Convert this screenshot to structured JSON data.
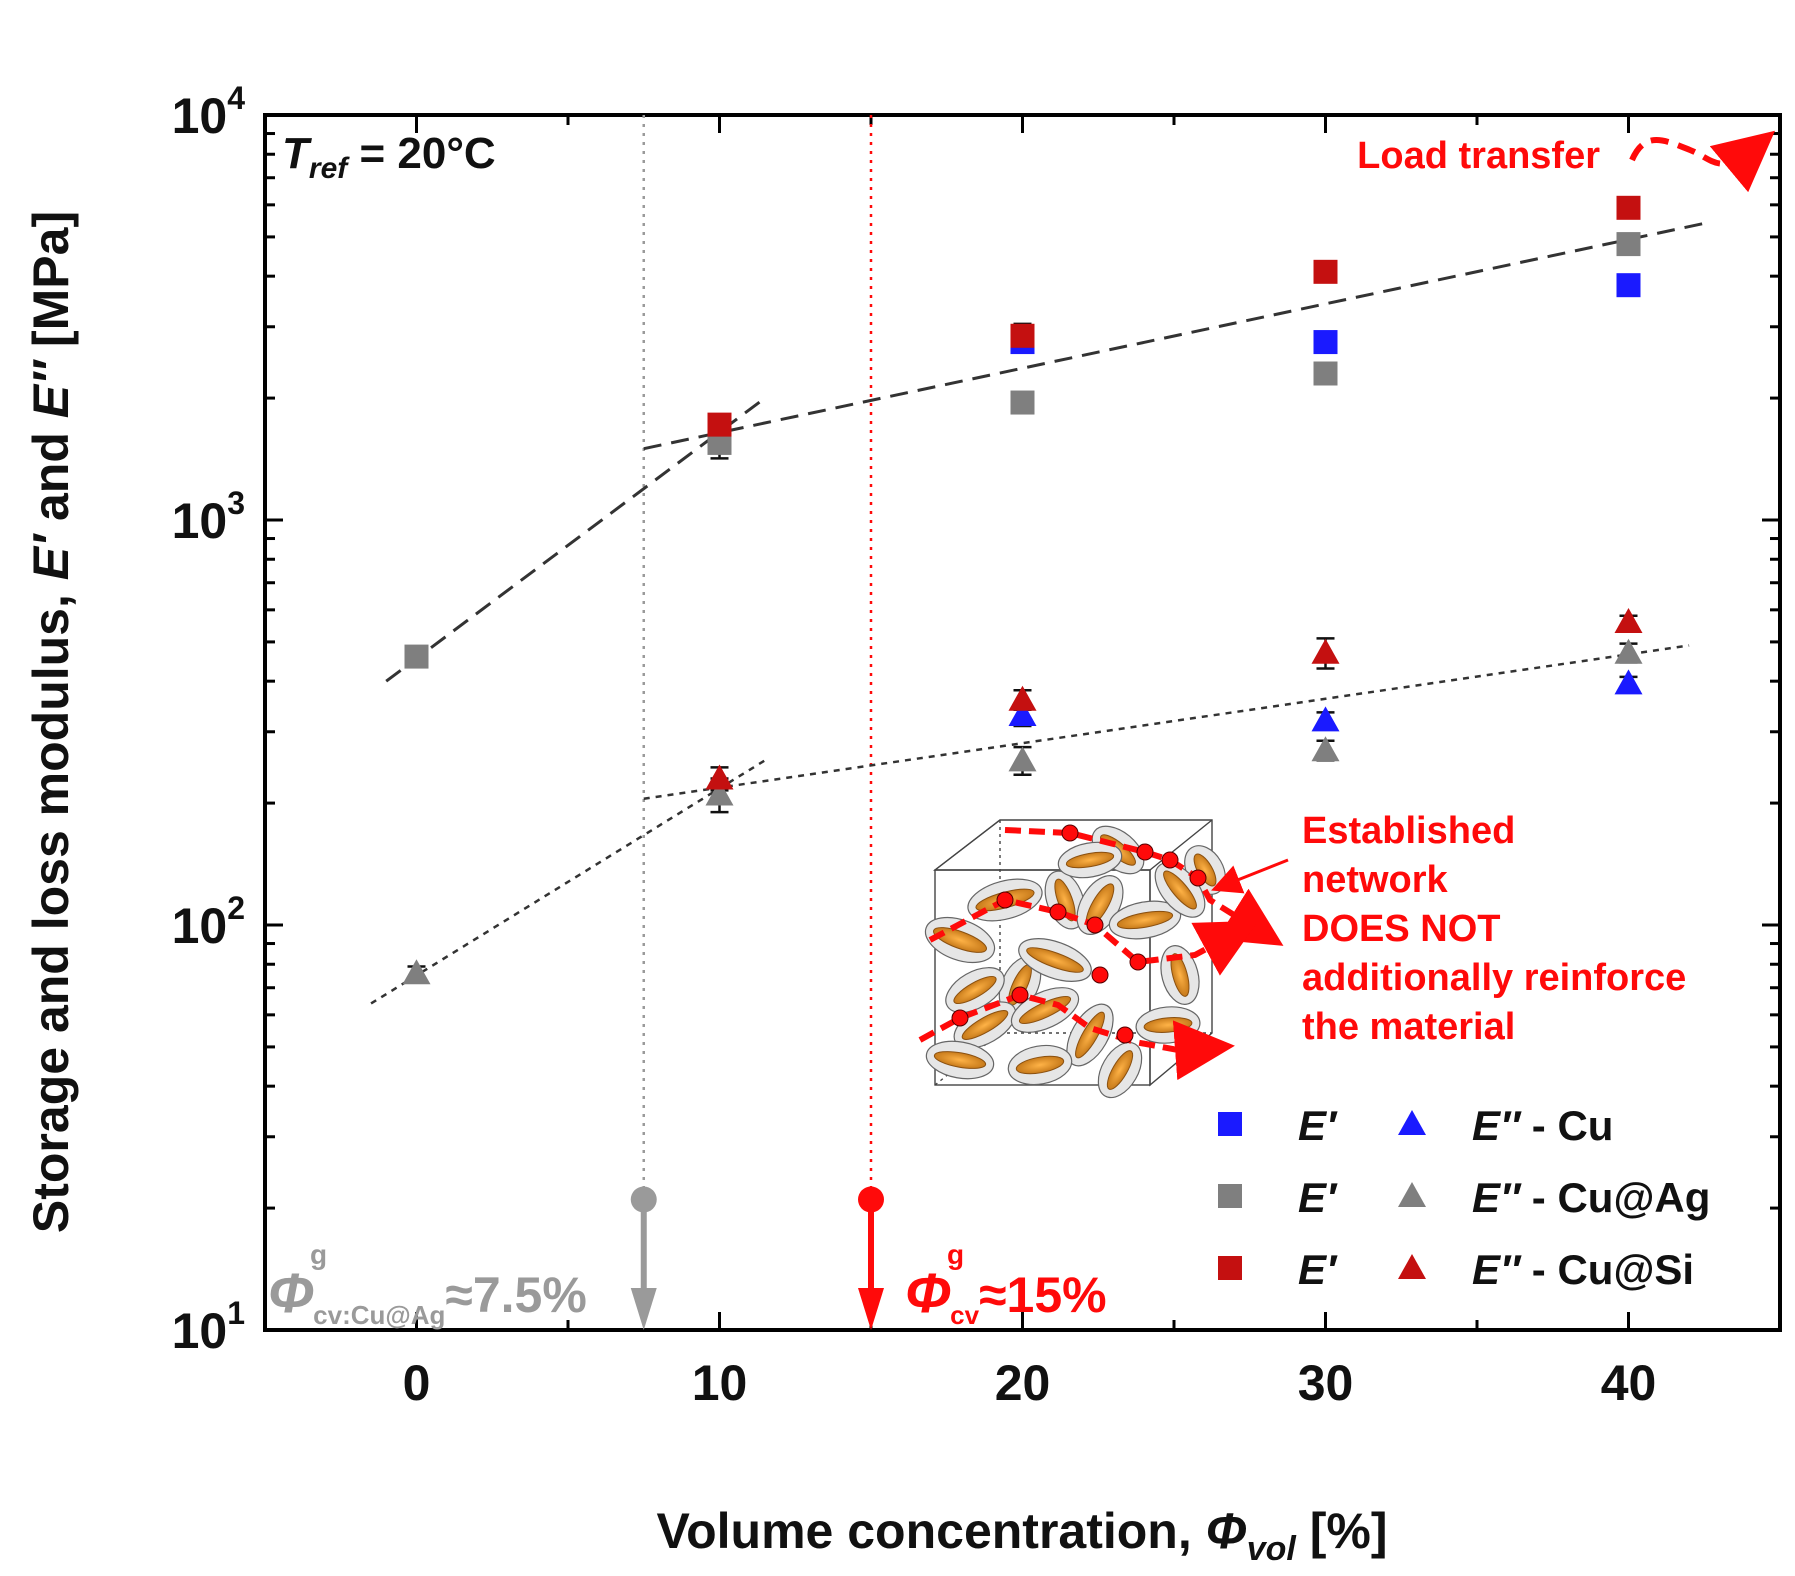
{
  "chart_data": {
    "type": "scatter",
    "title": "",
    "xlabel": "Volume concentration, Φvol [%]",
    "ylabel": "Storage and loss modulus, E′ and E″ [MPa]",
    "xlim": [
      -5,
      45
    ],
    "ylim": [
      10,
      10000
    ],
    "yscale": "log",
    "x_ticks": [
      0,
      10,
      20,
      30,
      40
    ],
    "y_ticks": [
      10,
      100,
      1000,
      10000
    ],
    "reference_text": "Tref = 20°C",
    "series": [
      {
        "name": "E′ - Cu",
        "marker": "square",
        "color": "#1a1aff",
        "points": [
          {
            "x": 20,
            "y": 2750,
            "err": 150
          },
          {
            "x": 30,
            "y": 2750,
            "err": 150
          },
          {
            "x": 40,
            "y": 3800,
            "err": 120
          }
        ]
      },
      {
        "name": "E′ - Cu@Ag",
        "marker": "square",
        "color": "#7f7f7f",
        "points": [
          {
            "x": 0,
            "y": 460,
            "err": 20
          },
          {
            "x": 10,
            "y": 1550,
            "err": 130
          },
          {
            "x": 20,
            "y": 1950,
            "err": 90
          },
          {
            "x": 30,
            "y": 2300,
            "err": 130
          },
          {
            "x": 40,
            "y": 4800,
            "err": 180
          }
        ]
      },
      {
        "name": "E′ - Cu@Si",
        "marker": "square",
        "color": "#c41010",
        "points": [
          {
            "x": 10,
            "y": 1720,
            "err": 90
          },
          {
            "x": 20,
            "y": 2850,
            "err": 200
          },
          {
            "x": 30,
            "y": 4100,
            "err": 220
          },
          {
            "x": 40,
            "y": 5900,
            "err": 250
          }
        ]
      },
      {
        "name": "E″ - Cu",
        "marker": "triangle",
        "color": "#1a1aff",
        "points": [
          {
            "x": 20,
            "y": 330,
            "err": 20
          },
          {
            "x": 30,
            "y": 320,
            "err": 15
          },
          {
            "x": 40,
            "y": 395,
            "err": 15
          }
        ]
      },
      {
        "name": "E″ - Cu@Ag",
        "marker": "triangle",
        "color": "#7f7f7f",
        "points": [
          {
            "x": 0,
            "y": 76,
            "err": 3
          },
          {
            "x": 10,
            "y": 210,
            "err": 20
          },
          {
            "x": 20,
            "y": 255,
            "err": 20
          },
          {
            "x": 30,
            "y": 270,
            "err": 15
          },
          {
            "x": 40,
            "y": 470,
            "err": 25
          }
        ]
      },
      {
        "name": "E″ - Cu@Si",
        "marker": "triangle",
        "color": "#c41010",
        "points": [
          {
            "x": 10,
            "y": 230,
            "err": 15
          },
          {
            "x": 20,
            "y": 360,
            "err": 20
          },
          {
            "x": 30,
            "y": 470,
            "err": 40
          },
          {
            "x": 40,
            "y": 560,
            "err": 20
          }
        ]
      }
    ],
    "trend_lines": [
      {
        "name": "E′ trend (below threshold)",
        "style": "dashed",
        "points": [
          [
            -1,
            400
          ],
          [
            11.5,
            2000
          ]
        ]
      },
      {
        "name": "E′ trend (above threshold)",
        "style": "dashed",
        "points": [
          [
            7.5,
            1500
          ],
          [
            42.5,
            5400
          ]
        ]
      },
      {
        "name": "E″ trend (below threshold)",
        "style": "dotted",
        "points": [
          [
            -1.5,
            64
          ],
          [
            11.5,
            255
          ]
        ]
      },
      {
        "name": "E″ trend (above threshold)",
        "style": "dotted",
        "points": [
          [
            7.5,
            205
          ],
          [
            42,
            490
          ]
        ]
      }
    ],
    "thresholds": [
      {
        "x": 7.5,
        "color": "#9a9a9a",
        "symbol": "Φ",
        "superscript": "g",
        "subscript": "cv:Cu@Ag",
        "value_text": "≈7.5%"
      },
      {
        "x": 15,
        "color": "#ff0a0a",
        "symbol": "Φ",
        "superscript": "g",
        "subscript": "cv",
        "value_text": "≈15%"
      }
    ],
    "annotations": {
      "load_transfer": "Load transfer",
      "network_lines": [
        "Established",
        "network",
        "DOES NOT",
        "additionally reinforce",
        "the material"
      ]
    },
    "legend": {
      "position": "bottom-right",
      "entries": [
        {
          "square_label": "E′",
          "triangle_label": "E″",
          "material": "- Cu"
        },
        {
          "square_label": "E′",
          "triangle_label": "E″",
          "material": "- Cu@Ag"
        },
        {
          "square_label": "E′",
          "triangle_label": "E″",
          "material": "- Cu@Si"
        }
      ]
    },
    "colors": {
      "cu": "#1a1aff",
      "cu_ag": "#7f7f7f",
      "cu_si": "#c41010",
      "highlight": "#ff0a0a"
    }
  }
}
